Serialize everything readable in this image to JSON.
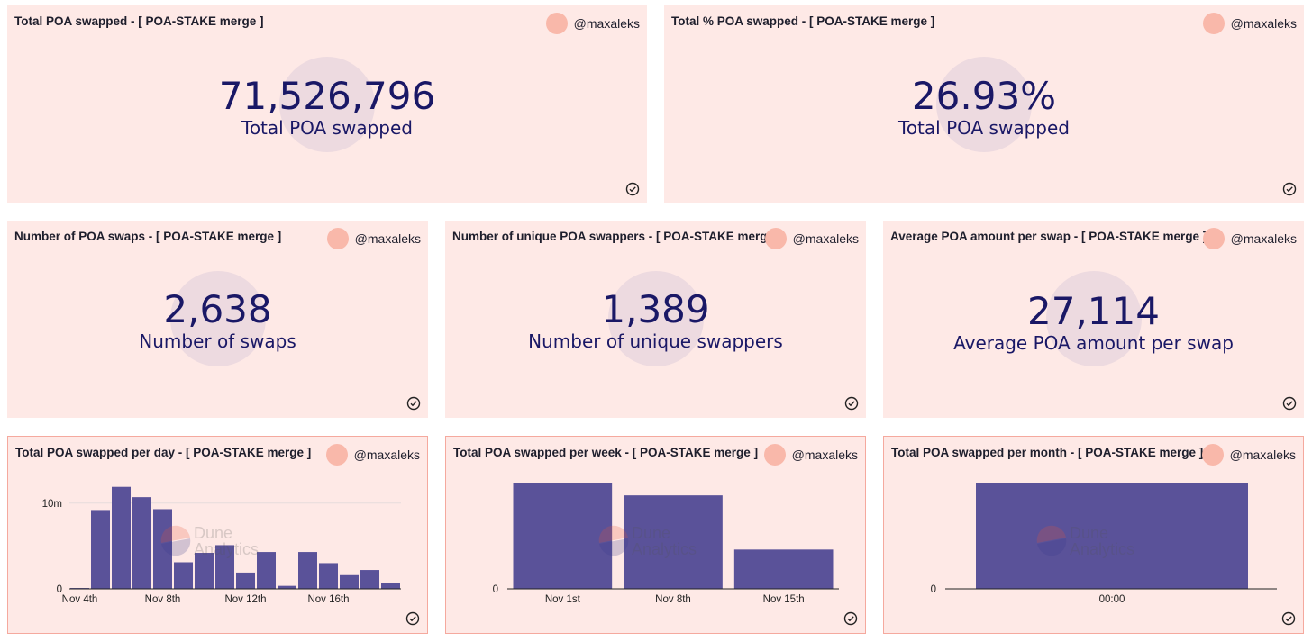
{
  "cards": {
    "total_swapped": {
      "title": "Total POA swapped - [ POA-STAKE merge ]",
      "author": "@maxaleks",
      "value": "71,526,796",
      "label": "Total POA swapped"
    },
    "total_pct": {
      "title": "Total % POA swapped - [ POA-STAKE merge ]",
      "author": "@maxaleks",
      "value": "26.93%",
      "label": "Total POA swapped"
    },
    "num_swaps": {
      "title": "Number of POA swaps - [ POA-STAKE merge ]",
      "author": "@maxaleks",
      "value": "2,638",
      "label": "Number of swaps"
    },
    "unique_swappers": {
      "title": "Number of unique POA swappers - [ POA-STAKE merge ]",
      "author": "@maxaleks",
      "value": "1,389",
      "label": "Number of unique swappers"
    },
    "avg_amount": {
      "title": "Average POA amount per swap - [ POA-STAKE merge ]",
      "author": "@maxaleks",
      "value": "27,114",
      "label": "Average POA amount per swap"
    },
    "per_day": {
      "title": "Total POA swapped per day - [ POA-STAKE merge ]",
      "author": "@maxaleks"
    },
    "per_week": {
      "title": "Total POA swapped per week - [ POA-STAKE merge ]",
      "author": "@maxaleks"
    },
    "per_month": {
      "title": "Total POA swapped per month - [ POA-STAKE merge ]",
      "author": "@maxaleks"
    }
  },
  "watermark": {
    "line1": "Dune",
    "line2": "Analytics"
  },
  "colors": {
    "bar": "#5a5299",
    "card_bg": "#fee9e6",
    "accent_text": "#1a1866",
    "avatar": "#f9b8aa"
  },
  "chart_data": [
    {
      "type": "bar",
      "id": "per_day",
      "title": "Total POA swapped per day - [ POA-STAKE merge ]",
      "x_ticks": [
        "Nov 4th",
        "Nov 8th",
        "Nov 12th",
        "Nov 16th"
      ],
      "y_ticks": [
        "0",
        "10m"
      ],
      "ylim": [
        0,
        12500000
      ],
      "grid": true,
      "values": [
        100000,
        9200000,
        11900000,
        10700000,
        9300000,
        3100000,
        4200000,
        5100000,
        1900000,
        4300000,
        350000,
        4300000,
        3000000,
        1600000,
        2200000,
        700000
      ]
    },
    {
      "type": "bar",
      "id": "per_week",
      "title": "Total POA swapped per week - [ POA-STAKE merge ]",
      "categories": [
        "Nov 1st",
        "Nov 8th",
        "Nov 15th"
      ],
      "y_ticks": [
        "0"
      ],
      "values": [
        1.0,
        0.88,
        0.37
      ]
    },
    {
      "type": "bar",
      "id": "per_month",
      "title": "Total POA swapped per month - [ POA-STAKE merge ]",
      "categories": [
        "00:00"
      ],
      "y_ticks": [
        "0"
      ],
      "values": [
        1.0
      ]
    }
  ]
}
